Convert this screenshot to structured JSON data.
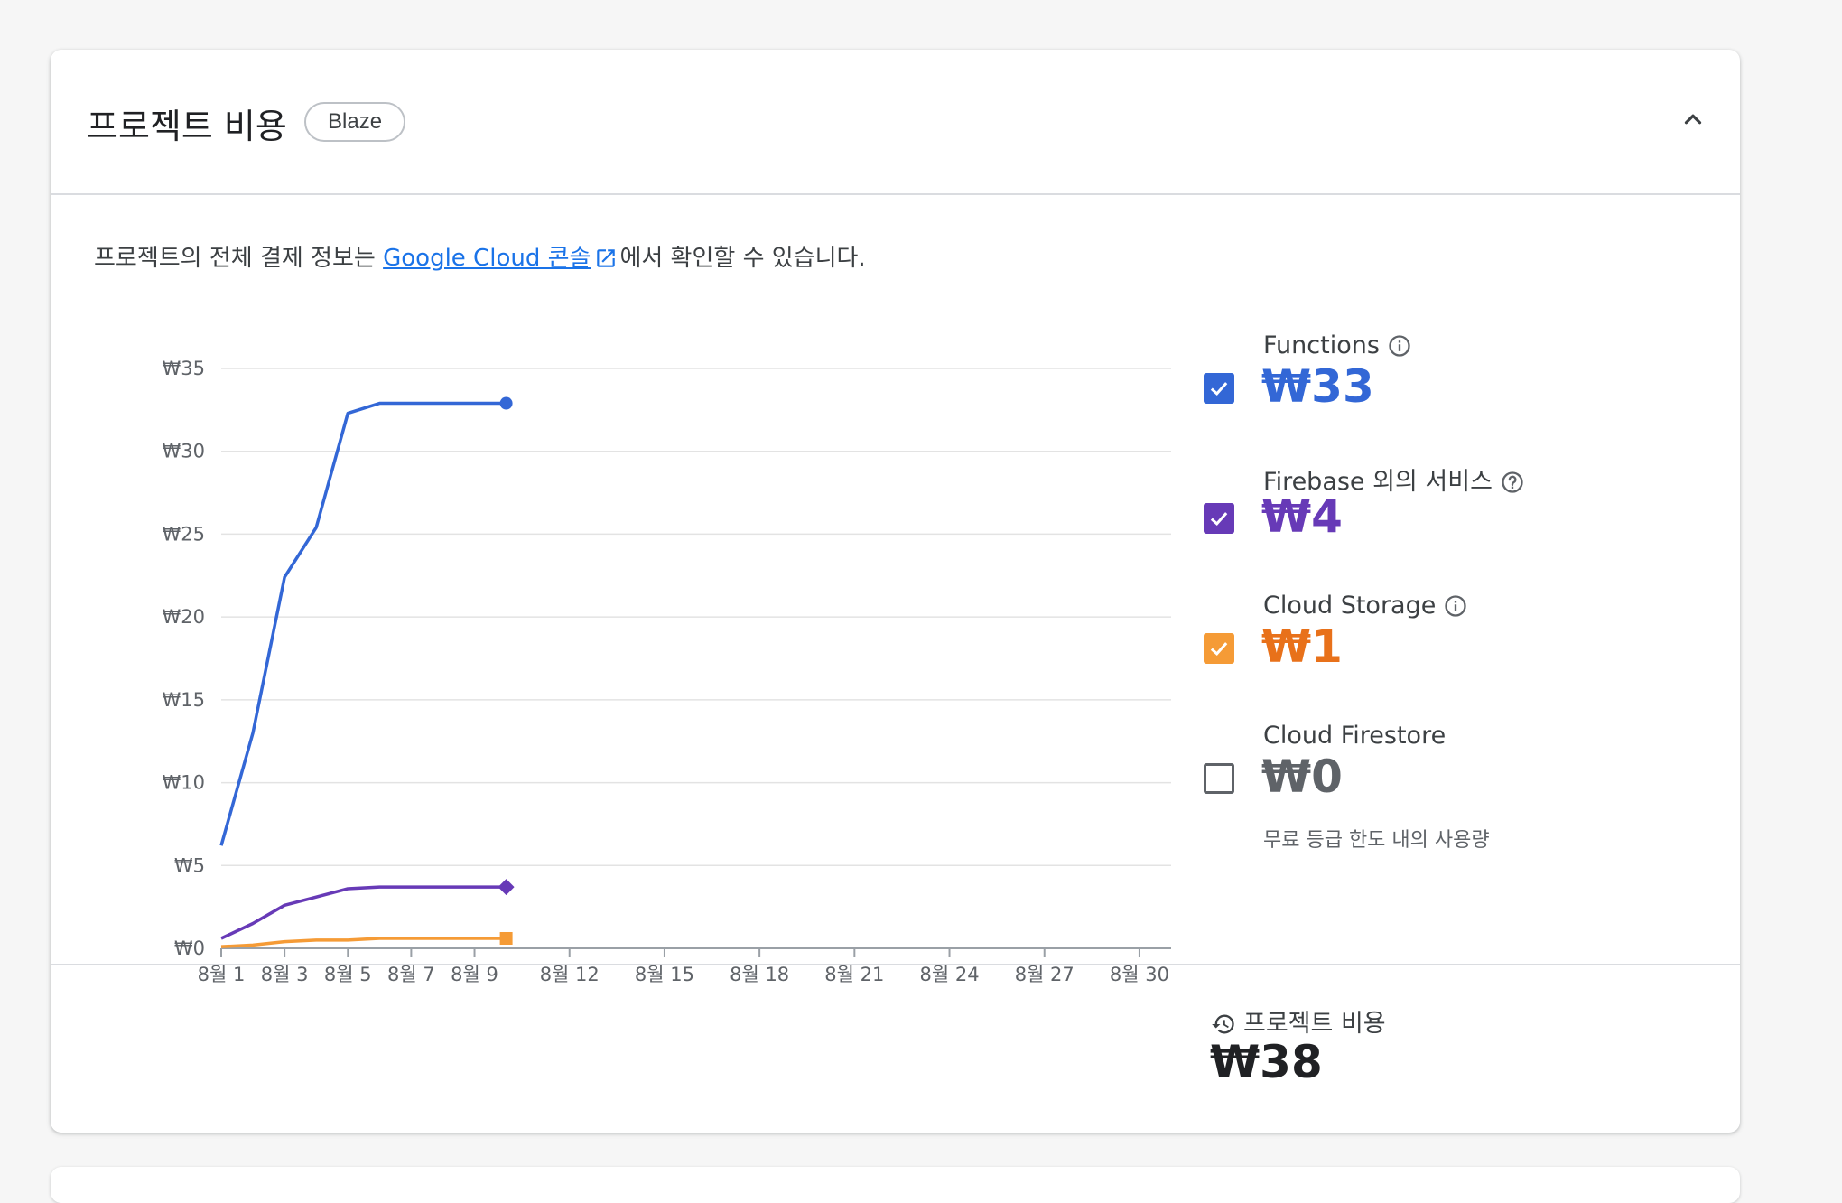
{
  "card": {
    "title": "프로젝트 비용",
    "plan_badge": "Blaze",
    "billing_info": {
      "prefix": "프로젝트의 전체 결제 정보는 ",
      "link_text": "Google Cloud 콘솔",
      "suffix": "에서 확인할 수 있습니다."
    }
  },
  "colors": {
    "functions": "#3367d6",
    "non_firebase": "#673ab7",
    "cloud_storage": "#f59b36",
    "cloud_storage_text": "#e8711a",
    "cloud_firestore": "#5f6368",
    "link": "#1a73e8"
  },
  "legend": [
    {
      "name": "Functions",
      "value": "₩33",
      "checked": true,
      "icon": "info-icon",
      "color": "#3367d6",
      "text_color": "#3367d6"
    },
    {
      "name": "Firebase 외의 서비스",
      "value": "₩4",
      "checked": true,
      "icon": "help-icon",
      "color": "#673ab7",
      "text_color": "#673ab7"
    },
    {
      "name": "Cloud Storage",
      "value": "₩1",
      "checked": true,
      "icon": "info-icon",
      "color": "#f59b36",
      "text_color": "#e8711a"
    },
    {
      "name": "Cloud Firestore",
      "value": "₩0",
      "checked": false,
      "icon": "",
      "color": "#5f6368",
      "text_color": "#5f6368",
      "sub": "무료 등급 한도 내의 사용량"
    }
  ],
  "total": {
    "label": "프로젝트 비용",
    "value": "₩38"
  },
  "chart_data": {
    "type": "line",
    "x_tick_labels": [
      "8월 1",
      "8월 3",
      "8월 5",
      "8월 7",
      "8월 9",
      "8월 12",
      "8월 15",
      "8월 18",
      "8월 21",
      "8월 24",
      "8월 27",
      "8월 30"
    ],
    "x_tick_days": [
      1,
      3,
      5,
      7,
      9,
      12,
      15,
      18,
      21,
      24,
      27,
      30
    ],
    "y_tick_labels": [
      "₩0",
      "₩5",
      "₩10",
      "₩15",
      "₩20",
      "₩25",
      "₩30",
      "₩35"
    ],
    "y_ticks": [
      0,
      5,
      10,
      15,
      20,
      25,
      30,
      35
    ],
    "xlim": [
      1,
      31
    ],
    "ylim": [
      0,
      35
    ],
    "grid": true,
    "series": [
      {
        "name": "Functions",
        "color": "#3367d6",
        "marker": "circle",
        "x": [
          1,
          2,
          3,
          4,
          5,
          6,
          7,
          8,
          9,
          10
        ],
        "y": [
          6.2,
          13.0,
          22.4,
          25.4,
          32.3,
          32.9,
          32.9,
          32.9,
          32.9,
          32.9
        ]
      },
      {
        "name": "Firebase 외의 서비스",
        "color": "#673ab7",
        "marker": "diamond",
        "x": [
          1,
          2,
          3,
          4,
          5,
          6,
          7,
          8,
          9,
          10
        ],
        "y": [
          0.6,
          1.5,
          2.6,
          3.1,
          3.6,
          3.7,
          3.7,
          3.7,
          3.7,
          3.7
        ]
      },
      {
        "name": "Cloud Storage",
        "color": "#f59b36",
        "marker": "square",
        "x": [
          1,
          2,
          3,
          4,
          5,
          6,
          7,
          8,
          9,
          10
        ],
        "y": [
          0.1,
          0.2,
          0.4,
          0.5,
          0.5,
          0.6,
          0.6,
          0.6,
          0.6,
          0.6
        ]
      }
    ]
  }
}
